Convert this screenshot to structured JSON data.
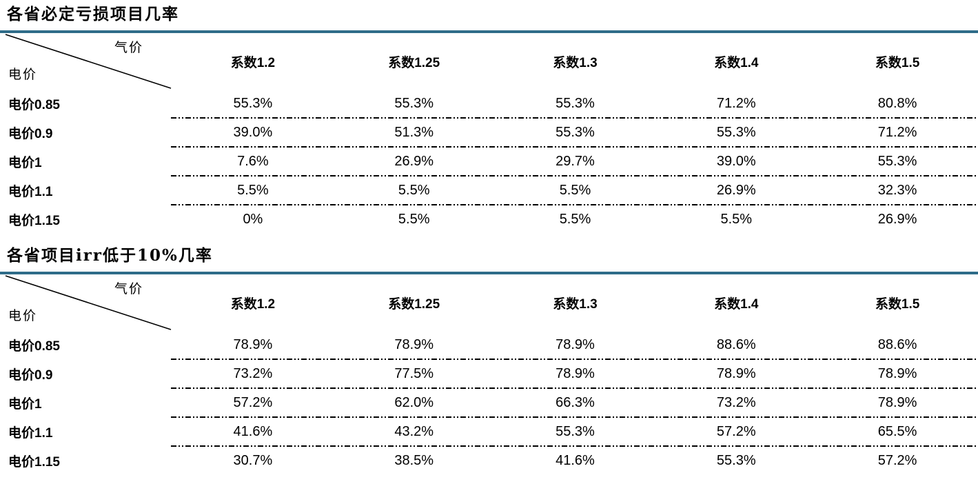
{
  "page": {
    "background": "#ffffff",
    "text_color": "#000000",
    "accent_color": "#2F6C89"
  },
  "tables": [
    {
      "title": "各省必定亏损项目几率",
      "corner": {
        "top_label": "气价",
        "bottom_label": "电价"
      },
      "columns": [
        "系数1.2",
        "系数1.25",
        "系数1.3",
        "系数1.4",
        "系数1.5"
      ],
      "rows": [
        {
          "label": "电价0.85",
          "values": [
            "55.3%",
            "55.3%",
            "55.3%",
            "71.2%",
            "80.8%"
          ]
        },
        {
          "label": "电价0.9",
          "values": [
            "39.0%",
            "51.3%",
            "55.3%",
            "55.3%",
            "71.2%"
          ]
        },
        {
          "label": "电价1",
          "values": [
            "7.6%",
            "26.9%",
            "29.7%",
            "39.0%",
            "55.3%"
          ]
        },
        {
          "label": "电价1.1",
          "values": [
            "5.5%",
            "5.5%",
            "5.5%",
            "26.9%",
            "32.3%"
          ]
        },
        {
          "label": "电价1.15",
          "values": [
            "0%",
            "5.5%",
            "5.5%",
            "5.5%",
            "26.9%"
          ]
        }
      ]
    },
    {
      "title": "各省项目irr低于10%几率",
      "corner": {
        "top_label": "气价",
        "bottom_label": "电价"
      },
      "columns": [
        "系数1.2",
        "系数1.25",
        "系数1.3",
        "系数1.4",
        "系数1.5"
      ],
      "rows": [
        {
          "label": "电价0.85",
          "values": [
            "78.9%",
            "78.9%",
            "78.9%",
            "88.6%",
            "88.6%"
          ]
        },
        {
          "label": "电价0.9",
          "values": [
            "73.2%",
            "77.5%",
            "78.9%",
            "78.9%",
            "78.9%"
          ]
        },
        {
          "label": "电价1",
          "values": [
            "57.2%",
            "62.0%",
            "66.3%",
            "73.2%",
            "78.9%"
          ]
        },
        {
          "label": "电价1.1",
          "values": [
            "41.6%",
            "43.2%",
            "55.3%",
            "57.2%",
            "65.5%"
          ]
        },
        {
          "label": "电价1.15",
          "values": [
            "30.7%",
            "38.5%",
            "41.6%",
            "55.3%",
            "57.2%"
          ]
        }
      ]
    }
  ],
  "chart_data": [
    {
      "type": "table",
      "title": "各省必定亏损项目几率",
      "row_axis_label": "电价",
      "col_axis_label": "气价",
      "columns": [
        "系数1.2",
        "系数1.25",
        "系数1.3",
        "系数1.4",
        "系数1.5"
      ],
      "rows": [
        "电价0.85",
        "电价0.9",
        "电价1",
        "电价1.1",
        "电价1.15"
      ],
      "values_percent": [
        [
          55.3,
          55.3,
          55.3,
          71.2,
          80.8
        ],
        [
          39.0,
          51.3,
          55.3,
          55.3,
          71.2
        ],
        [
          7.6,
          26.9,
          29.7,
          39.0,
          55.3
        ],
        [
          5.5,
          5.5,
          5.5,
          26.9,
          32.3
        ],
        [
          0,
          5.5,
          5.5,
          5.5,
          26.9
        ]
      ]
    },
    {
      "type": "table",
      "title": "各省项目irr低于10%几率",
      "row_axis_label": "电价",
      "col_axis_label": "气价",
      "columns": [
        "系数1.2",
        "系数1.25",
        "系数1.3",
        "系数1.4",
        "系数1.5"
      ],
      "rows": [
        "电价0.85",
        "电价0.9",
        "电价1",
        "电价1.1",
        "电价1.15"
      ],
      "values_percent": [
        [
          78.9,
          78.9,
          78.9,
          88.6,
          88.6
        ],
        [
          73.2,
          77.5,
          78.9,
          78.9,
          78.9
        ],
        [
          57.2,
          62.0,
          66.3,
          73.2,
          78.9
        ],
        [
          41.6,
          43.2,
          55.3,
          57.2,
          65.5
        ],
        [
          30.7,
          38.5,
          41.6,
          55.3,
          57.2
        ]
      ]
    }
  ]
}
